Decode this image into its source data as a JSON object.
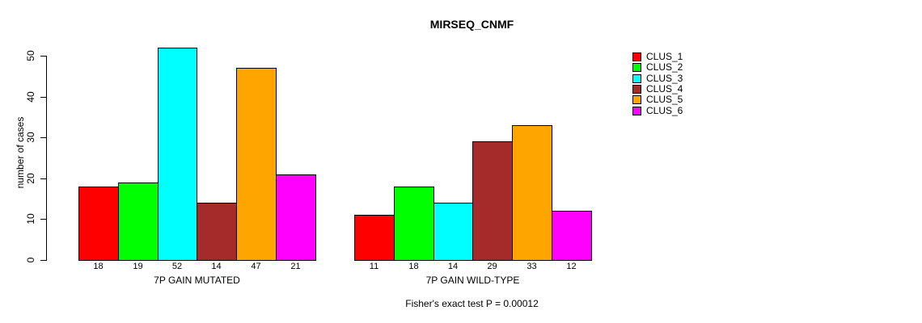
{
  "chart_data": {
    "type": "bar",
    "title": "MIRSEQ_CNMF",
    "ylabel": "number of cases",
    "xlabel": "",
    "ylim": [
      0,
      55
    ],
    "yticks": [
      0,
      10,
      20,
      30,
      40,
      50
    ],
    "grid": false,
    "legend_position": "right",
    "series": [
      {
        "name": "CLUS_1",
        "color": "#ff0000"
      },
      {
        "name": "CLUS_2",
        "color": "#00ff00"
      },
      {
        "name": "CLUS_3",
        "color": "#00ffff"
      },
      {
        "name": "CLUS_4",
        "color": "#a52a2a"
      },
      {
        "name": "CLUS_5",
        "color": "#ffa500"
      },
      {
        "name": "CLUS_6",
        "color": "#ff00ff"
      }
    ],
    "groups": [
      {
        "label": "7P GAIN MUTATED",
        "values": [
          18,
          19,
          52,
          14,
          47,
          21
        ]
      },
      {
        "label": "7P GAIN WILD-TYPE",
        "values": [
          11,
          18,
          14,
          29,
          33,
          12
        ]
      }
    ],
    "annotation": "Fisher's exact test P = 0.00012",
    "axis_color": "#000000",
    "background_color": "#ffffff"
  }
}
